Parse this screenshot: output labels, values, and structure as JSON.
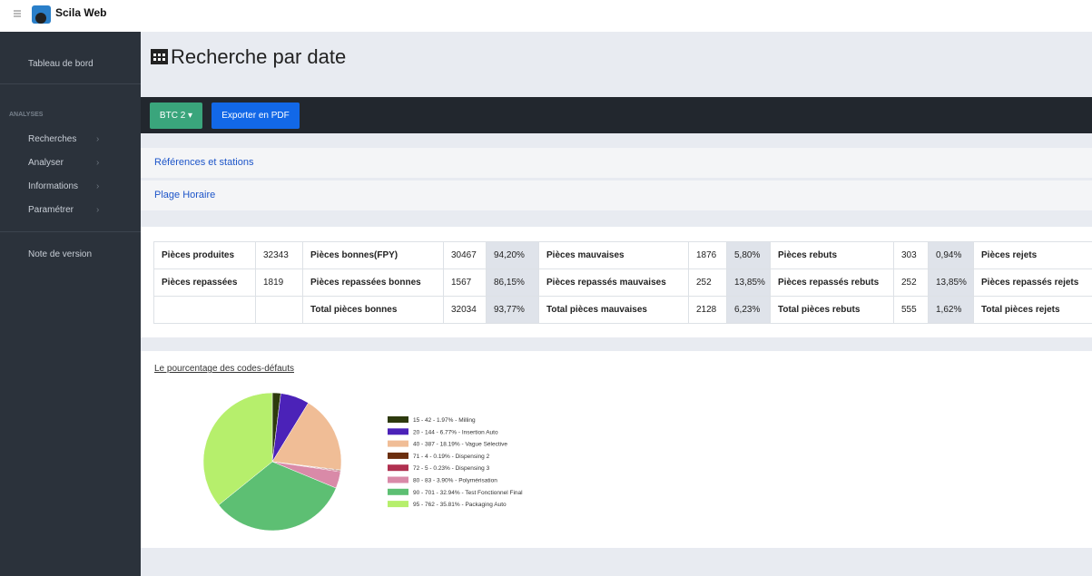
{
  "header": {
    "brand": "Scila Web"
  },
  "sidebar": {
    "top": "Tableau de bord",
    "section": "ANALYSES",
    "menu": [
      "Recherches",
      "Analyser",
      "Informations",
      "Paramétrer"
    ],
    "footer": "Note de version"
  },
  "page": {
    "title": "Recherche par date"
  },
  "toolbar": {
    "select": "BTC 2",
    "export": "Exporter en PDF"
  },
  "panels": [
    "Références et stations",
    "Plage Horaire"
  ],
  "table": {
    "rows": [
      [
        "Pièces produites",
        "32343",
        "Pièces bonnes(FPY)",
        "30467",
        "94,20%",
        "Pièces mauvaises",
        "1876",
        "5,80%",
        "Pièces rebuts",
        "303",
        "0,94%",
        "Pièces rejets"
      ],
      [
        "Pièces repassées",
        "1819",
        "Pièces repassées bonnes",
        "1567",
        "86,15%",
        "Pièces repassés mauvaises",
        "252",
        "13,85%",
        "Pièces repassés rebuts",
        "252",
        "13,85%",
        "Pièces repassés rejets"
      ],
      [
        null,
        null,
        "Total pièces bonnes",
        "32034",
        "93,77%",
        "Total pièces mauvaises",
        "2128",
        "6,23%",
        "Total pièces rebuts",
        "555",
        "1,62%",
        "Total pièces rejets"
      ]
    ]
  },
  "chart_data": {
    "type": "pie",
    "title": "Le pourcentage des codes-défauts",
    "categories": [
      "15 - 42 - 1.97% - Milling",
      "20 - 144 - 6.77% - Insertion Auto",
      "40 - 387 - 18.19% - Vague Sélective",
      "71 - 4 - 0.19% - Dispensing 2",
      "72 - 5 - 0.23% - Dispensing 3",
      "80 - 83 - 3.90% - Polymérisation",
      "90 - 701 - 32.94% - Test Fonctionnel Final",
      "95 - 762 - 35.81% - Packaging Auto"
    ],
    "values": [
      1.97,
      6.77,
      18.19,
      0.19,
      0.23,
      3.9,
      32.94,
      35.81
    ],
    "colors": [
      "#2d3a0d",
      "#4b22b8",
      "#f0bd96",
      "#6b2e0e",
      "#b03050",
      "#d98aa8",
      "#5dbf73",
      "#b6ef6c"
    ]
  }
}
